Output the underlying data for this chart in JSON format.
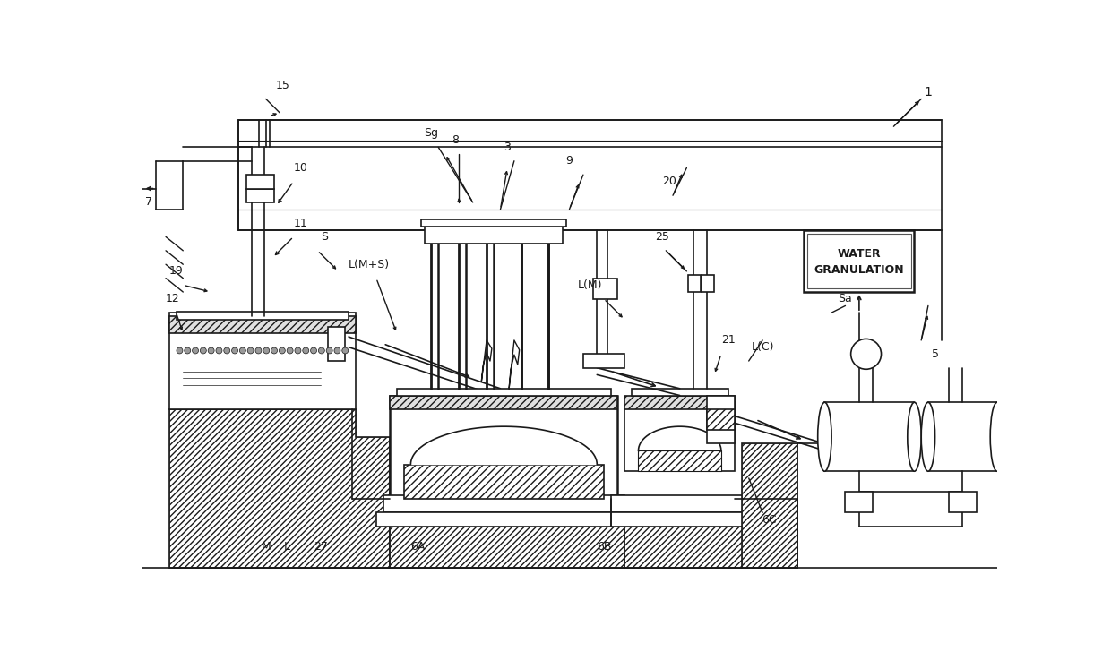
{
  "bg_color": "#ffffff",
  "line_color": "#1a1a1a",
  "figsize": [
    12.4,
    7.47
  ],
  "dpi": 100,
  "xlim": [
    0,
    124
  ],
  "ylim": [
    0,
    74.7
  ]
}
